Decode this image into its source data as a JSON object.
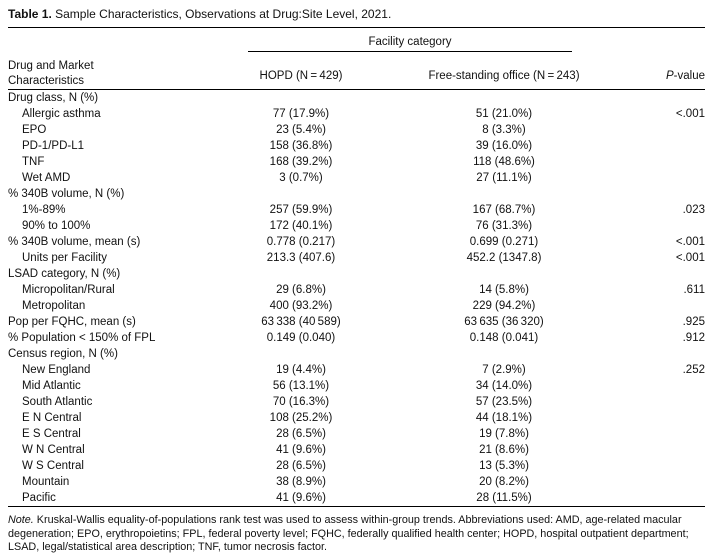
{
  "title": {
    "label": "Table 1.",
    "text": " Sample Characteristics, Observations at Drug:Site Level, 2021."
  },
  "header": {
    "stub_line1": "Drug and Market",
    "stub_line2": "Characteristics",
    "spanner": "Facility category",
    "hopd": "HOPD (N = 429)",
    "office": "Free-standing office (N = 243)",
    "p_italic": "P",
    "p_rest": "-value"
  },
  "table": {
    "rows": [
      {
        "label": "Drug class, N (%)",
        "indent": 0,
        "hopd": "",
        "office": "",
        "p": ""
      },
      {
        "label": "Allergic asthma",
        "indent": 1,
        "hopd": "77 (17.9%)",
        "office": "51 (21.0%)",
        "p": "<.001"
      },
      {
        "label": "EPO",
        "indent": 1,
        "hopd": "23 (5.4%)",
        "office": "8 (3.3%)",
        "p": ""
      },
      {
        "label": "PD-1/PD-L1",
        "indent": 1,
        "hopd": "158 (36.8%)",
        "office": "39 (16.0%)",
        "p": ""
      },
      {
        "label": "TNF",
        "indent": 1,
        "hopd": "168 (39.2%)",
        "office": "118 (48.6%)",
        "p": ""
      },
      {
        "label": "Wet AMD",
        "indent": 1,
        "hopd": "3 (0.7%)",
        "office": "27 (11.1%)",
        "p": ""
      },
      {
        "label": "% 340B volume, N (%)",
        "indent": 0,
        "hopd": "",
        "office": "",
        "p": ""
      },
      {
        "label": "1%-89%",
        "indent": 1,
        "hopd": "257 (59.9%)",
        "office": "167 (68.7%)",
        "p": ".023"
      },
      {
        "label": "90% to 100%",
        "indent": 1,
        "hopd": "172 (40.1%)",
        "office": "76 (31.3%)",
        "p": ""
      },
      {
        "label": "% 340B volume, mean (s)",
        "indent": 0,
        "hopd": "0.778 (0.217)",
        "office": "0.699 (0.271)",
        "p": "<.001"
      },
      {
        "label": "Units per Facility",
        "indent": 1,
        "hopd": "213.3 (407.6)",
        "office": "452.2 (1347.8)",
        "p": "<.001"
      },
      {
        "label": "LSAD category, N (%)",
        "indent": 0,
        "hopd": "",
        "office": "",
        "p": ""
      },
      {
        "label": "Micropolitan/Rural",
        "indent": 1,
        "hopd": "29 (6.8%)",
        "office": "14 (5.8%)",
        "p": ".611"
      },
      {
        "label": "Metropolitan",
        "indent": 1,
        "hopd": "400 (93.2%)",
        "office": "229 (94.2%)",
        "p": ""
      },
      {
        "label": "Pop per FQHC, mean (s)",
        "indent": 0,
        "hopd": "63 338 (40 589)",
        "office": "63 635 (36 320)",
        "p": ".925"
      },
      {
        "label": "% Population < 150% of FPL",
        "indent": 0,
        "hopd": "0.149 (0.040)",
        "office": "0.148 (0.041)",
        "p": ".912"
      },
      {
        "label": "Census region, N (%)",
        "indent": 0,
        "hopd": "",
        "office": "",
        "p": ""
      },
      {
        "label": "New England",
        "indent": 1,
        "hopd": "19 (4.4%)",
        "office": "7 (2.9%)",
        "p": ".252"
      },
      {
        "label": "Mid Atlantic",
        "indent": 1,
        "hopd": "56 (13.1%)",
        "office": "34 (14.0%)",
        "p": ""
      },
      {
        "label": "South Atlantic",
        "indent": 1,
        "hopd": "70 (16.3%)",
        "office": "57 (23.5%)",
        "p": ""
      },
      {
        "label": "E N Central",
        "indent": 1,
        "hopd": "108 (25.2%)",
        "office": "44 (18.1%)",
        "p": ""
      },
      {
        "label": "E S Central",
        "indent": 1,
        "hopd": "28 (6.5%)",
        "office": "19 (7.8%)",
        "p": ""
      },
      {
        "label": "W N Central",
        "indent": 1,
        "hopd": "41 (9.6%)",
        "office": "21 (8.6%)",
        "p": ""
      },
      {
        "label": "W S Central",
        "indent": 1,
        "hopd": "28 (6.5%)",
        "office": "13 (5.3%)",
        "p": ""
      },
      {
        "label": "Mountain",
        "indent": 1,
        "hopd": "38 (8.9%)",
        "office": "20 (8.2%)",
        "p": ""
      },
      {
        "label": "Pacific",
        "indent": 1,
        "hopd": "41 (9.6%)",
        "office": "28 (11.5%)",
        "p": ""
      }
    ]
  },
  "note": {
    "label": "Note.",
    "text": " Kruskal-Wallis equality-of-populations rank test was used to assess within-group trends. Abbreviations used: AMD, age-related macular degeneration; EPO, erythropoietins; FPL, federal poverty level; FQHC, federally qualified health center; HOPD, hospital outpatient department; LSAD, legal/statistical area description; TNF, tumor necrosis factor."
  }
}
